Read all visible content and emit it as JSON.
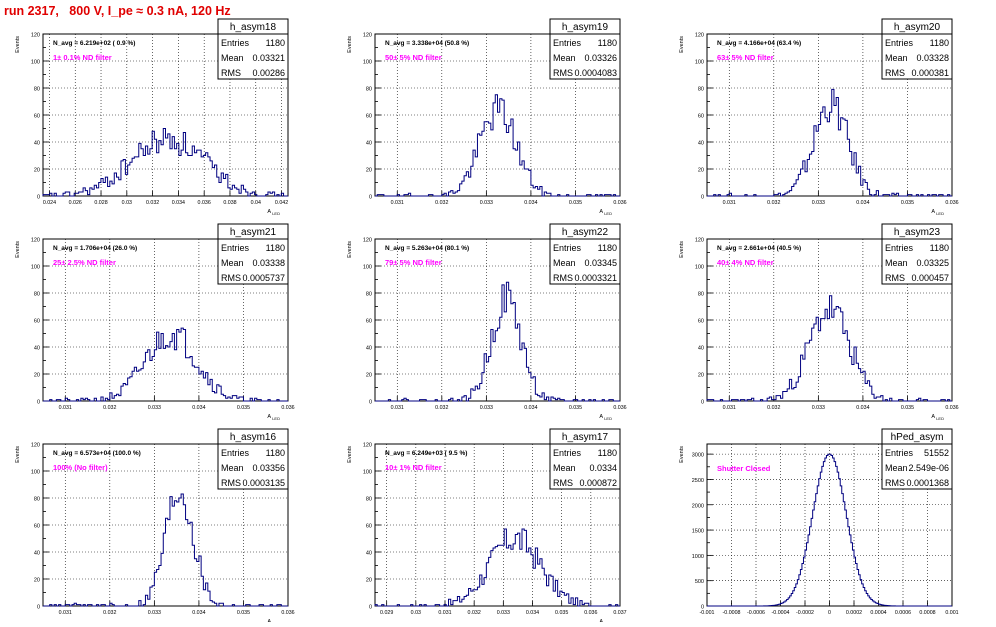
{
  "page": {
    "title": "run 2317,   800 V, I_pe ≈ 0.3 nA, 120 Hz"
  },
  "colors": {
    "histogram": "#000080",
    "annotation": "#ff00ff",
    "title": "#e00000"
  },
  "chart_data": [
    {
      "type": "histogram",
      "name": "h_asym18",
      "ylabel": "Events",
      "xlabel": "A_LED",
      "xlim": [
        0.0235,
        0.0425
      ],
      "ylim": [
        0,
        120
      ],
      "grid": true,
      "legend_position": "top-right",
      "xticks": [
        0.024,
        0.026,
        0.028,
        0.03,
        0.032,
        0.034,
        0.036,
        0.038,
        0.04,
        0.042
      ],
      "xtick_labels": [
        "0.024",
        "0.026",
        "0.028",
        "0.03",
        "0.032",
        "0.034",
        "0.036",
        "0.038",
        "0.04",
        "0.042"
      ],
      "yticks": [
        0,
        10,
        20,
        30,
        40,
        50,
        60,
        70,
        80,
        90,
        100,
        110,
        120
      ],
      "yticks_labeled": [
        0,
        20,
        40,
        60,
        80,
        100,
        120
      ],
      "stats": {
        "entries_label": "Entries",
        "entries": "1180",
        "mean_label": "Mean",
        "mean": "0.03321",
        "rms_label": "RMS",
        "rms": "0.00286"
      },
      "n_avg": "N_avg = 6.219e+02 ( 0.9 %)",
      "filter": "1± 0.1% ND filter",
      "center": 0.0332,
      "width": 0.00286,
      "peak": 42,
      "seed": 18
    },
    {
      "type": "histogram",
      "name": "h_asym19",
      "ylabel": "Events",
      "xlabel": "A_LED",
      "xlim": [
        0.0305,
        0.036
      ],
      "ylim": [
        0,
        120
      ],
      "grid": true,
      "legend_position": "top-right",
      "xticks": [
        0.031,
        0.032,
        0.033,
        0.034,
        0.035,
        0.036
      ],
      "xtick_labels": [
        "0.031",
        "0.032",
        "0.033",
        "0.034",
        "0.035",
        "0.036"
      ],
      "yticks": [
        0,
        10,
        20,
        30,
        40,
        50,
        60,
        70,
        80,
        90,
        100,
        110,
        120
      ],
      "yticks_labeled": [
        0,
        20,
        40,
        60,
        80,
        100,
        120
      ],
      "stats": {
        "entries_label": "Entries",
        "entries": "1180",
        "mean_label": "Mean",
        "mean": "0.03326",
        "rms_label": "RMS",
        "rms": "0.0004083"
      },
      "n_avg": "N_avg = 3.338e+04 (50.8 %)",
      "filter": "50± 5% ND filter",
      "center": 0.03326,
      "width": 0.000408,
      "peak": 64,
      "seed": 19
    },
    {
      "type": "histogram",
      "name": "h_asym20",
      "ylabel": "Events",
      "xlabel": "A_LED",
      "xlim": [
        0.0305,
        0.036
      ],
      "ylim": [
        0,
        120
      ],
      "grid": true,
      "legend_position": "top-right",
      "xticks": [
        0.031,
        0.032,
        0.033,
        0.034,
        0.035,
        0.036
      ],
      "xtick_labels": [
        "0.031",
        "0.032",
        "0.033",
        "0.034",
        "0.035",
        "0.036"
      ],
      "yticks": [
        0,
        10,
        20,
        30,
        40,
        50,
        60,
        70,
        80,
        90,
        100,
        110,
        120
      ],
      "yticks_labeled": [
        0,
        20,
        40,
        60,
        80,
        100,
        120
      ],
      "stats": {
        "entries_label": "Entries",
        "entries": "1180",
        "mean_label": "Mean",
        "mean": "0.03328",
        "rms_label": "RMS",
        "rms": "0.000381"
      },
      "n_avg": "N_avg = 4.166e+04 (63.4 %)",
      "filter": "63± 5% ND filter",
      "center": 0.03328,
      "width": 0.000381,
      "peak": 68,
      "seed": 20
    },
    {
      "type": "histogram",
      "name": "h_asym21",
      "ylabel": "Events",
      "xlabel": "A_LED",
      "xlim": [
        0.0305,
        0.036
      ],
      "ylim": [
        0,
        120
      ],
      "grid": true,
      "legend_position": "top-right",
      "xticks": [
        0.031,
        0.032,
        0.033,
        0.034,
        0.035,
        0.036
      ],
      "xtick_labels": [
        "0.031",
        "0.032",
        "0.033",
        "0.034",
        "0.035",
        "0.036"
      ],
      "yticks": [
        0,
        10,
        20,
        30,
        40,
        50,
        60,
        70,
        80,
        90,
        100,
        110,
        120
      ],
      "yticks_labeled": [
        0,
        20,
        40,
        60,
        80,
        100,
        120
      ],
      "stats": {
        "entries_label": "Entries",
        "entries": "1180",
        "mean_label": "Mean",
        "mean": "0.03338",
        "rms_label": "RMS",
        "rms": "0.0005737"
      },
      "n_avg": "N_avg = 1.706e+04 (26.0 %)",
      "filter": "25± 2.5% ND filter",
      "center": 0.03338,
      "width": 0.000574,
      "peak": 50,
      "seed": 21
    },
    {
      "type": "histogram",
      "name": "h_asym22",
      "ylabel": "Events",
      "xlabel": "A_LED",
      "xlim": [
        0.0305,
        0.036
      ],
      "ylim": [
        0,
        120
      ],
      "grid": true,
      "legend_position": "top-right",
      "xticks": [
        0.031,
        0.032,
        0.033,
        0.034,
        0.035,
        0.036
      ],
      "xtick_labels": [
        "0.031",
        "0.032",
        "0.033",
        "0.034",
        "0.035",
        "0.036"
      ],
      "yticks": [
        0,
        10,
        20,
        30,
        40,
        50,
        60,
        70,
        80,
        90,
        100,
        110,
        120
      ],
      "yticks_labeled": [
        0,
        20,
        40,
        60,
        80,
        100,
        120
      ],
      "stats": {
        "entries_label": "Entries",
        "entries": "1180",
        "mean_label": "Mean",
        "mean": "0.03345",
        "rms_label": "RMS",
        "rms": "0.0003321"
      },
      "n_avg": "N_avg = 5.263e+04 (80.1 %)",
      "filter": "79± 5% ND filter",
      "center": 0.03345,
      "width": 0.000332,
      "peak": 76,
      "seed": 22
    },
    {
      "type": "histogram",
      "name": "h_asym23",
      "ylabel": "Events",
      "xlabel": "A_LED",
      "xlim": [
        0.0305,
        0.036
      ],
      "ylim": [
        0,
        120
      ],
      "grid": true,
      "legend_position": "top-right",
      "xticks": [
        0.031,
        0.032,
        0.033,
        0.034,
        0.035,
        0.036
      ],
      "xtick_labels": [
        "0.031",
        "0.032",
        "0.033",
        "0.034",
        "0.035",
        "0.036"
      ],
      "yticks": [
        0,
        10,
        20,
        30,
        40,
        50,
        60,
        70,
        80,
        90,
        100,
        110,
        120
      ],
      "yticks_labeled": [
        0,
        20,
        40,
        60,
        80,
        100,
        120
      ],
      "stats": {
        "entries_label": "Entries",
        "entries": "1180",
        "mean_label": "Mean",
        "mean": "0.03325",
        "rms_label": "RMS",
        "rms": "0.000457"
      },
      "n_avg": "N_avg = 2.661e+04 (40.5 %)",
      "filter": "40± 4% ND filter",
      "center": 0.03325,
      "width": 0.000457,
      "peak": 68,
      "seed": 23
    },
    {
      "type": "histogram",
      "name": "h_asym16",
      "ylabel": "Events",
      "xlabel": "A_LED",
      "xlim": [
        0.0305,
        0.036
      ],
      "ylim": [
        0,
        120
      ],
      "grid": true,
      "legend_position": "top-right",
      "xticks": [
        0.031,
        0.032,
        0.033,
        0.034,
        0.035,
        0.036
      ],
      "xtick_labels": [
        "0.031",
        "0.032",
        "0.033",
        "0.034",
        "0.035",
        "0.036"
      ],
      "yticks": [
        0,
        10,
        20,
        30,
        40,
        50,
        60,
        70,
        80,
        90,
        100,
        110,
        120
      ],
      "yticks_labeled": [
        0,
        20,
        40,
        60,
        80,
        100,
        120
      ],
      "stats": {
        "entries_label": "Entries",
        "entries": "1180",
        "mean_label": "Mean",
        "mean": "0.03356",
        "rms_label": "RMS",
        "rms": "0.0003135"
      },
      "n_avg": "N_avg = 6.573e+04 (100.0 %)",
      "filter": "100% (No filter)",
      "center": 0.03356,
      "width": 0.000313,
      "peak": 86,
      "seed": 16
    },
    {
      "type": "histogram",
      "name": "h_asym17",
      "ylabel": "Events",
      "xlabel": "A_LED",
      "xlim": [
        0.0286,
        0.037
      ],
      "ylim": [
        0,
        120
      ],
      "grid": true,
      "legend_position": "top-right",
      "xticks": [
        0.029,
        0.03,
        0.031,
        0.032,
        0.033,
        0.034,
        0.035,
        0.036,
        0.037
      ],
      "xtick_labels": [
        "0.029",
        "0.03",
        "0.031",
        "0.032",
        "0.033",
        "0.034",
        "0.035",
        "0.036",
        "0.037"
      ],
      "yticks": [
        0,
        10,
        20,
        30,
        40,
        50,
        60,
        70,
        80,
        90,
        100,
        110,
        120
      ],
      "yticks_labeled": [
        0,
        20,
        40,
        60,
        80,
        100,
        120
      ],
      "stats": {
        "entries_label": "Entries",
        "entries": "1180",
        "mean_label": "Mean",
        "mean": "0.0334",
        "rms_label": "RMS",
        "rms": "0.000872"
      },
      "n_avg": "N_avg = 6.249e+03 ( 9.5 %)",
      "filter": "10± 1% ND filter",
      "center": 0.0334,
      "width": 0.000872,
      "peak": 50,
      "seed": 17
    },
    {
      "type": "histogram",
      "name": "hPed_asym",
      "ylabel": "Events",
      "xlabel": "",
      "xlim": [
        -0.001,
        0.001
      ],
      "ylim": [
        0,
        3200
      ],
      "grid": true,
      "legend_position": "top-right",
      "xticks": [
        -0.001,
        -0.0008,
        -0.0006,
        -0.0004,
        -0.0002,
        0,
        0.0002,
        0.0004,
        0.0006,
        0.0008,
        0.001
      ],
      "xtick_labels": [
        "-0.001",
        "-0.0008",
        "-0.0006",
        "-0.0004",
        "-0.0002",
        "0",
        "0.0002",
        "0.0004",
        "0.0006",
        "0.0008",
        "0.001"
      ],
      "yticks": [
        0,
        250,
        500,
        750,
        1000,
        1250,
        1500,
        1750,
        2000,
        2250,
        2500,
        2750,
        3000
      ],
      "yticks_labeled": [
        0,
        500,
        1000,
        1500,
        2000,
        2500,
        3000
      ],
      "stats": {
        "entries_label": "Entries",
        "entries": "51552",
        "mean_label": "Mean",
        "mean": "2.549e-06",
        "rms_label": "RMS",
        "rms": "0.0001368"
      },
      "n_avg": "",
      "filter": "Shutter Closed",
      "center": 0.0,
      "width": 0.000137,
      "peak": 3000,
      "seed": 99,
      "smooth": true
    }
  ]
}
